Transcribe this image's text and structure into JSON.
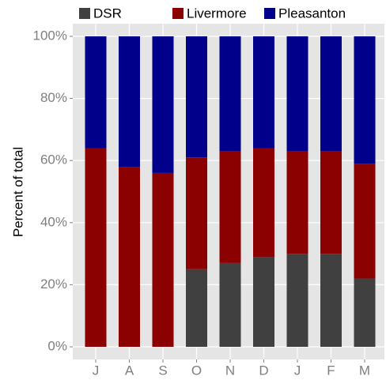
{
  "chart_data": {
    "type": "stacked_bar",
    "categories": [
      "J",
      "A",
      "S",
      "O",
      "N",
      "D",
      "J",
      "F",
      "M"
    ],
    "series": [
      {
        "name": "DSR",
        "color": "#404040",
        "values": [
          0,
          0,
          0,
          25,
          27,
          29,
          30,
          30,
          22
        ]
      },
      {
        "name": "Livermore",
        "color": "#8b0000",
        "values": [
          64,
          58,
          56,
          36,
          36,
          35,
          33,
          33,
          37
        ]
      },
      {
        "name": "Pleasanton",
        "color": "#00008b",
        "values": [
          36,
          42,
          44,
          39,
          37,
          36,
          37,
          37,
          41
        ]
      }
    ],
    "y_label": "Percent of total",
    "ylim": [
      0,
      100
    ],
    "yticks": [
      {
        "value": 0,
        "label": "0%"
      },
      {
        "value": 20,
        "label": "20%"
      },
      {
        "value": 40,
        "label": "40%"
      },
      {
        "value": 60,
        "label": "60%"
      },
      {
        "value": 80,
        "label": "80%"
      },
      {
        "value": 100,
        "label": "100%"
      }
    ],
    "grid": true,
    "legend": "top"
  }
}
